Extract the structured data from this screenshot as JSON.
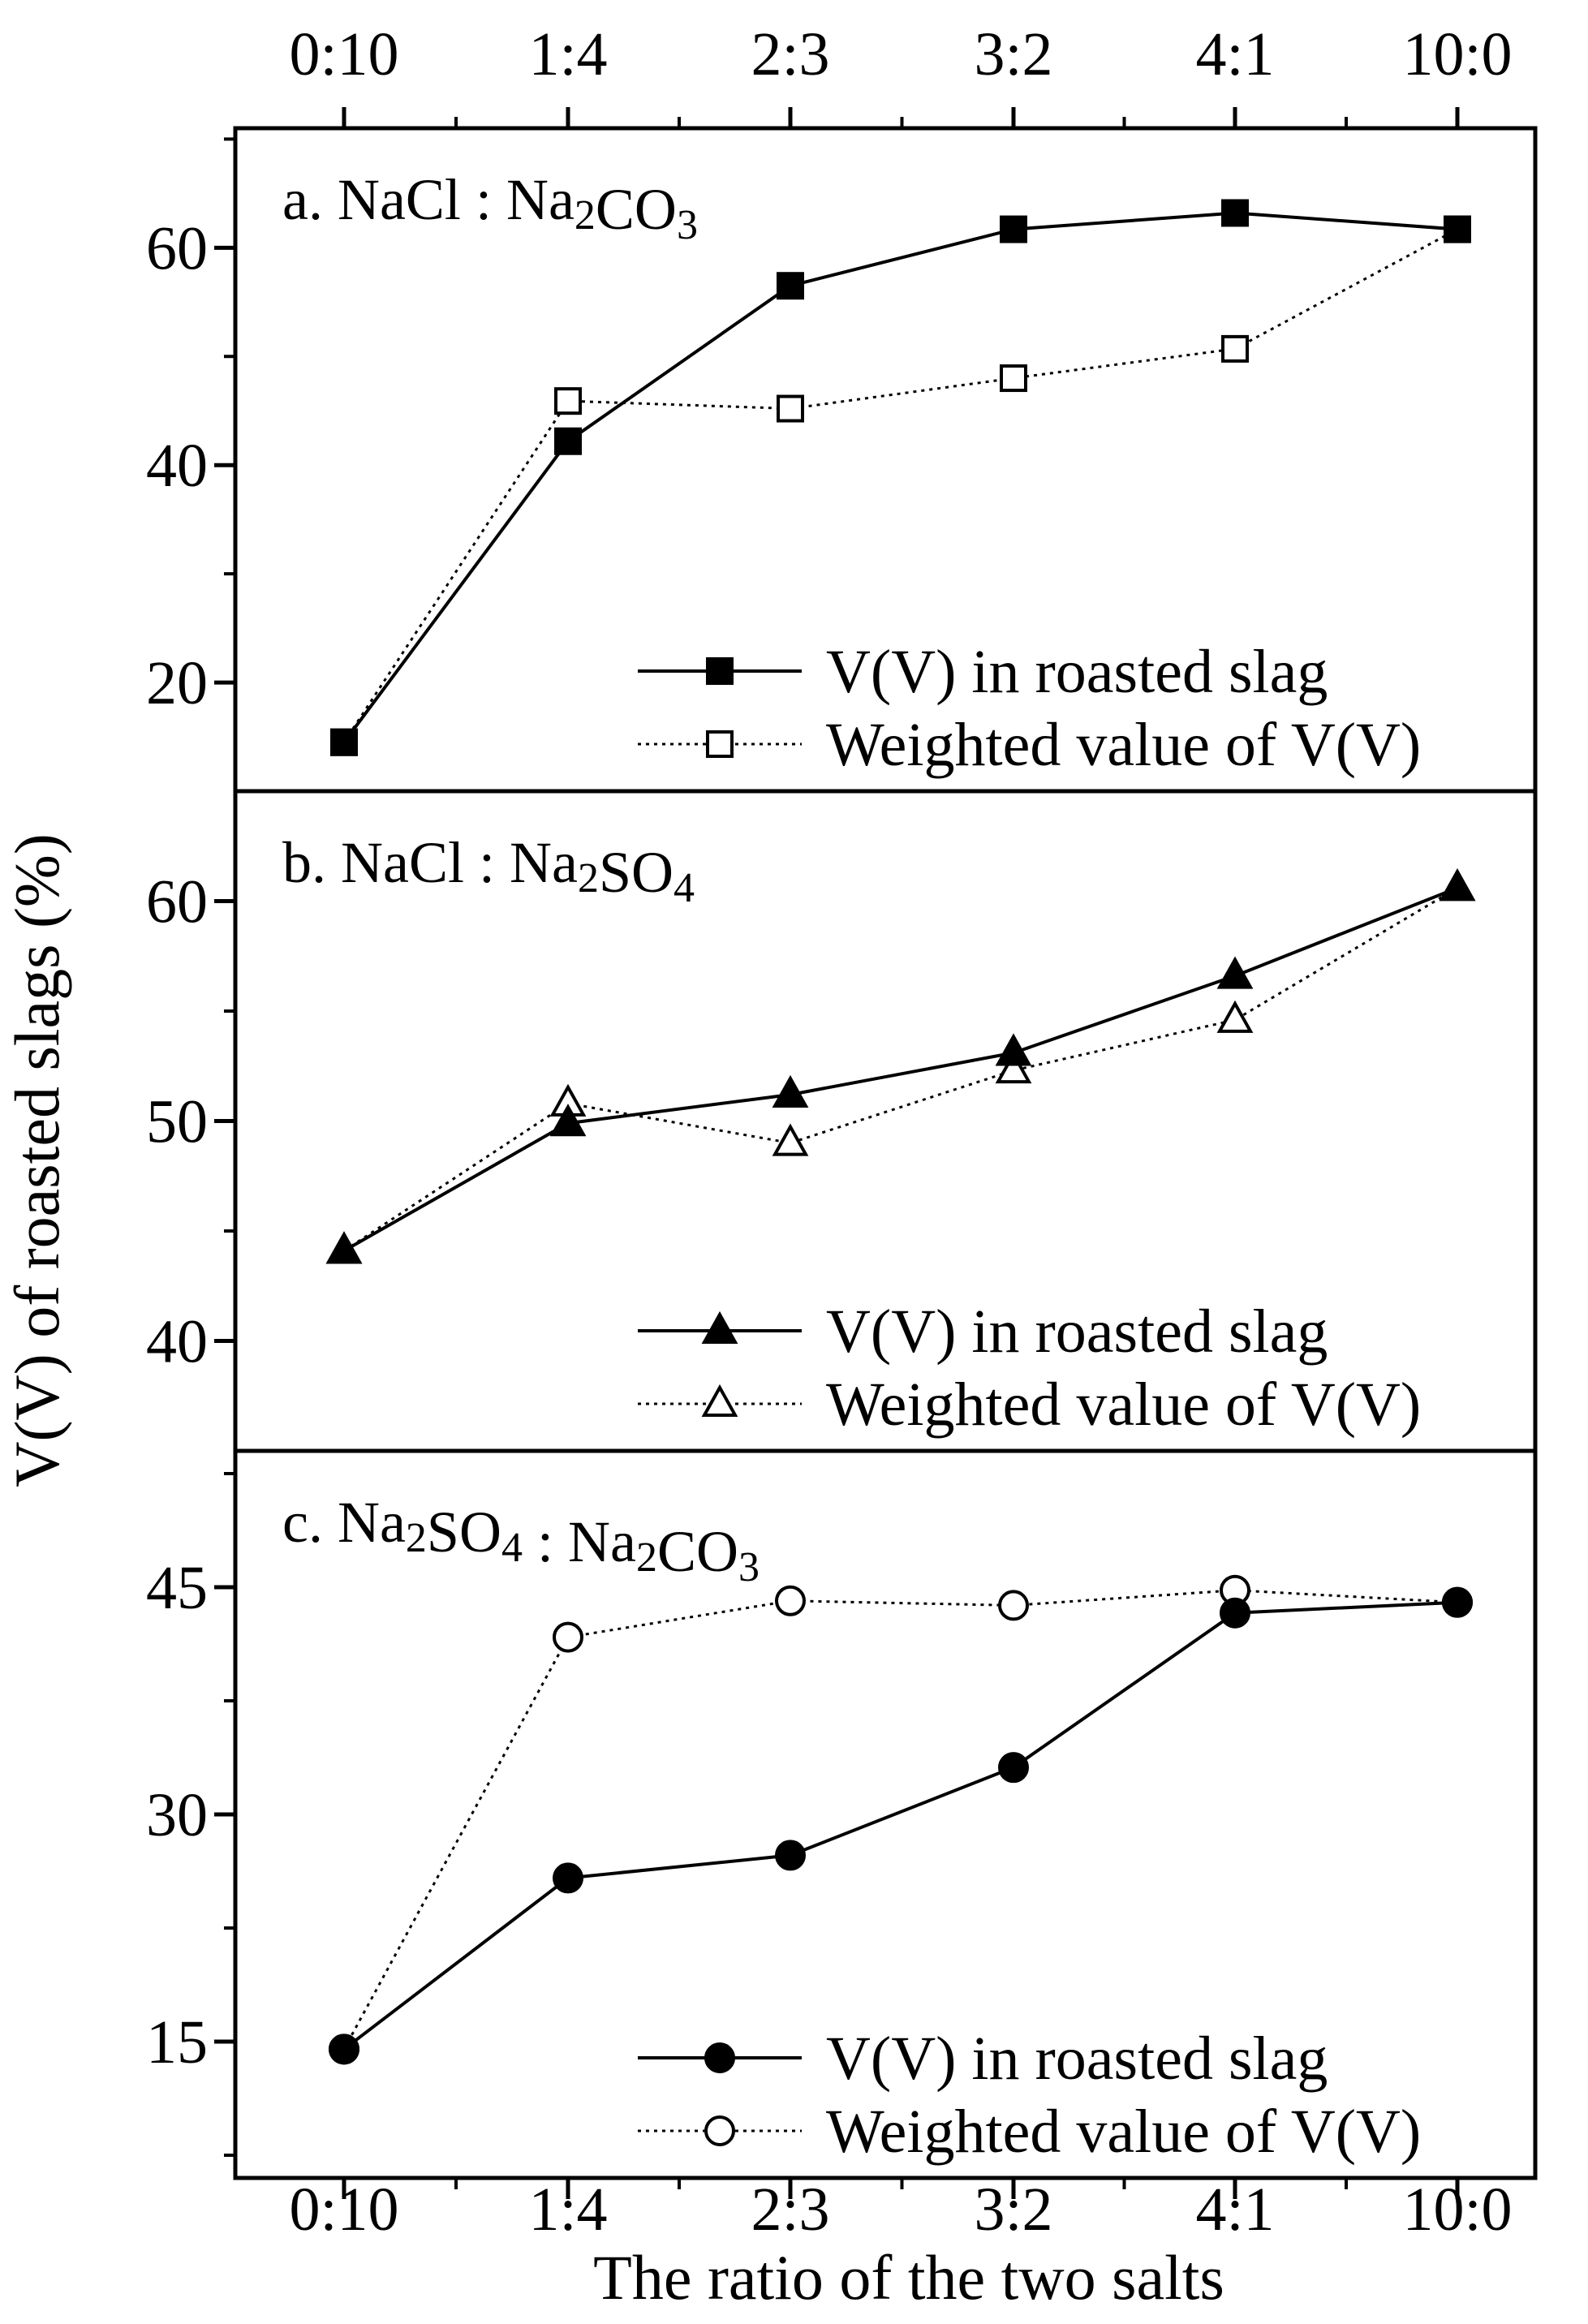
{
  "chart_data": {
    "type": "line",
    "xlabel": "The ratio of the two salts",
    "ylabel": "V(V) of roasted slags (%)",
    "categories": [
      "0:10",
      "1:4",
      "2:3",
      "3:2",
      "4:1",
      "10:0"
    ],
    "panels": [
      {
        "title": {
          "prefix": "a. NaCl : Na",
          "sub1": "2",
          "mid": "CO",
          "sub2": "3"
        },
        "ylim": [
          10,
          71
        ],
        "yticks": [
          20,
          40,
          60
        ],
        "minor_step": 10,
        "series": [
          {
            "name": "V(V) in roasted slag",
            "marker": "square",
            "filled": true,
            "dash": "none",
            "values": [
              14.5,
              42.2,
              56.5,
              61.7,
              63.2,
              61.7
            ]
          },
          {
            "name": "Weighted value of V(V)",
            "marker": "square",
            "filled": false,
            "dash": "dotted",
            "values": [
              14.5,
              45.9,
              45.2,
              48.0,
              50.7,
              61.7
            ]
          }
        ]
      },
      {
        "title": {
          "prefix": "b. NaCl : Na",
          "sub1": "2",
          "mid": "SO",
          "sub2": "4"
        },
        "ylim": [
          35,
          65
        ],
        "yticks": [
          40,
          50,
          60
        ],
        "minor_step": 5,
        "series": [
          {
            "name": "V(V) in roasted slag",
            "marker": "triangle",
            "filled": true,
            "dash": "none",
            "values": [
              44.1,
              49.9,
              51.2,
              53.1,
              56.6,
              60.6
            ]
          },
          {
            "name": "Weighted value of V(V)",
            "marker": "triangle",
            "filled": false,
            "dash": "dotted",
            "values": [
              44.1,
              50.8,
              49.0,
              52.3,
              54.6,
              60.6
            ]
          }
        ]
      },
      {
        "title": {
          "prefix": "c. Na",
          "sub1": "2",
          "mid": "SO",
          "sub2": "4",
          "suffix": " : Na",
          "sub3": "2",
          "mid2": "CO",
          "sub4": "3"
        },
        "ylim": [
          6,
          54
        ],
        "yticks": [
          15,
          30,
          45
        ],
        "minor_step": 7.5,
        "series": [
          {
            "name": "V(V) in roasted slag",
            "marker": "circle",
            "filled": true,
            "dash": "none",
            "values": [
              14.5,
              25.8,
              27.3,
              33.1,
              43.3,
              44.0
            ]
          },
          {
            "name": "Weighted value of V(V)",
            "marker": "circle",
            "filled": false,
            "dash": "dotted",
            "values": [
              14.5,
              41.7,
              44.1,
              43.8,
              44.8,
              44.0
            ]
          }
        ]
      }
    ]
  }
}
